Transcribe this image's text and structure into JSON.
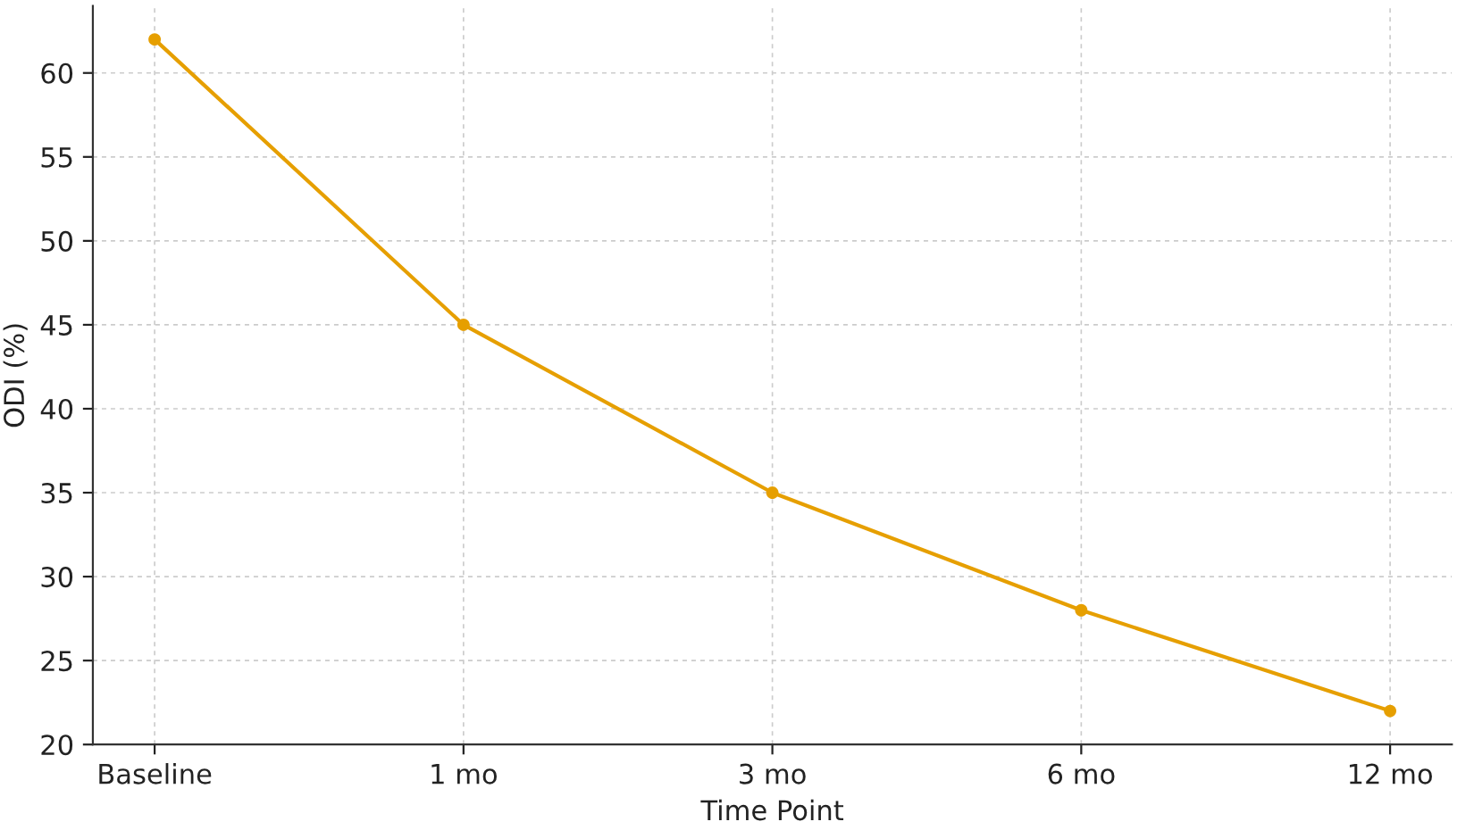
{
  "chart_data": {
    "type": "line",
    "xlabel": "Time Point",
    "ylabel": "ODI (%)",
    "categories": [
      "Baseline",
      "1 mo",
      "3 mo",
      "6 mo",
      "12 mo"
    ],
    "series": [
      {
        "color": "#e69f00",
        "values": [
          62,
          45,
          35,
          28,
          22
        ]
      }
    ],
    "ylim": [
      20,
      64
    ],
    "yticks": [
      20,
      25,
      30,
      35,
      40,
      45,
      50,
      55,
      60
    ],
    "grid": true,
    "marker": "circle",
    "line_style": "solid"
  }
}
